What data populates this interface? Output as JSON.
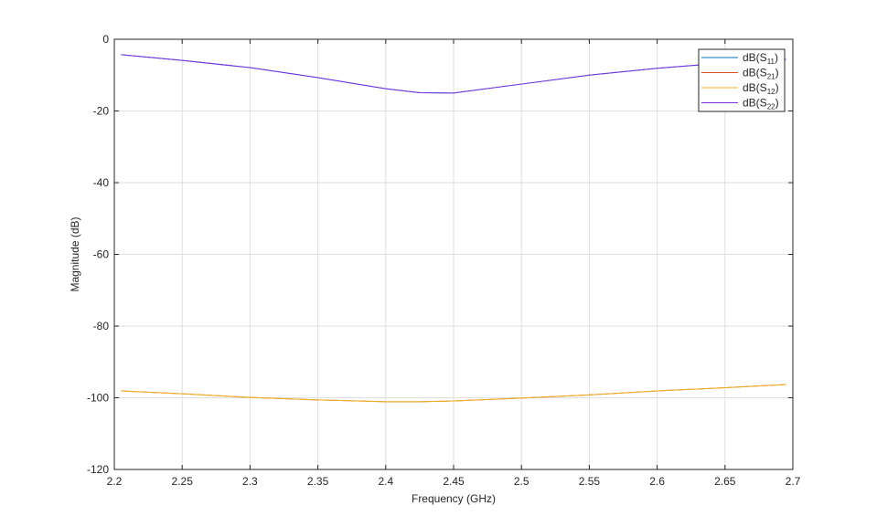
{
  "chart_data": {
    "type": "line",
    "xlabel": "Frequency (GHz)",
    "ylabel": "Magnitude (dB)",
    "xlim": [
      2.2,
      2.7
    ],
    "ylim": [
      -120,
      0
    ],
    "xticks": [
      2.2,
      2.25,
      2.3,
      2.35,
      2.4,
      2.45,
      2.5,
      2.55,
      2.6,
      2.65,
      2.7
    ],
    "xtick_labels": [
      "2.2",
      "2.25",
      "2.3",
      "2.35",
      "2.4",
      "2.45",
      "2.5",
      "2.55",
      "2.6",
      "2.65",
      "2.7"
    ],
    "yticks": [
      0,
      -20,
      -40,
      -60,
      -80,
      -100,
      -120
    ],
    "ytick_labels": [
      "0",
      "-20",
      "-40",
      "-60",
      "-80",
      "-100",
      "-120"
    ],
    "grid": true,
    "legend_placement": "top-right",
    "x": [
      2.205,
      2.25,
      2.3,
      2.35,
      2.4,
      2.425,
      2.45,
      2.5,
      2.55,
      2.6,
      2.65,
      2.695
    ],
    "series": [
      {
        "name": "dB(S11)",
        "label_base": "dB(S",
        "label_sub": "11",
        "label_end": ")",
        "color": "#0072BD",
        "values": [
          -4.3,
          -5.9,
          -7.9,
          -10.7,
          -13.8,
          -14.9,
          -15.0,
          -12.5,
          -10.0,
          -8.1,
          -6.6,
          -5.6
        ]
      },
      {
        "name": "dB(S21)",
        "label_base": "dB(S",
        "label_sub": "21",
        "label_end": ")",
        "color": "#D95319",
        "values": [
          -98.1,
          -98.9,
          -99.9,
          -100.6,
          -101.1,
          -101.1,
          -100.9,
          -100.1,
          -99.2,
          -98.1,
          -97.2,
          -96.3
        ]
      },
      {
        "name": "dB(S12)",
        "label_base": "dB(S",
        "label_sub": "12",
        "label_end": ")",
        "color": "#EDB120",
        "values": [
          -98.1,
          -98.9,
          -99.9,
          -100.6,
          -101.1,
          -101.1,
          -100.9,
          -100.1,
          -99.2,
          -98.1,
          -97.2,
          -96.3
        ]
      },
      {
        "name": "dB(S22)",
        "label_base": "dB(S",
        "label_sub": "22",
        "label_end": ")",
        "color": "#7E2FDE",
        "values": [
          -4.3,
          -5.9,
          -7.9,
          -10.7,
          -13.8,
          -14.9,
          -15.0,
          -12.5,
          -10.0,
          -8.1,
          -6.6,
          -5.6
        ]
      }
    ]
  }
}
